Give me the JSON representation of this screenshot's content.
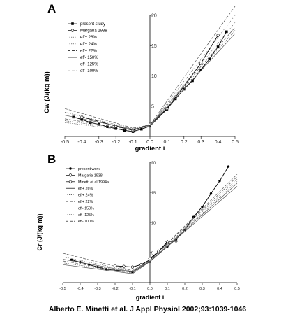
{
  "citation": "Alberto E. Minetti et al. J Appl Physiol 2002;93:1039-1046",
  "chart_data": [
    {
      "type": "line",
      "panel": "A",
      "xlabel": "gradient i",
      "ylabel": "Cw (J/(kg m))",
      "xlim": [
        -0.5,
        0.5
      ],
      "ylim": [
        0,
        20
      ],
      "xticks": [
        -0.5,
        -0.4,
        -0.3,
        -0.2,
        -0.1,
        0.0,
        0.1,
        0.2,
        0.3,
        0.4,
        0.5
      ],
      "xticklabels": [
        "-0.5",
        "-0.4",
        "-0.3",
        "-0.2",
        "-0.1",
        "0.0",
        "0.1",
        "0.2",
        "0.3",
        "0.4",
        "0.5"
      ],
      "yticks": [
        5,
        10,
        15,
        20
      ],
      "yticklabels": [
        "5",
        "10",
        "15",
        "20"
      ],
      "grid": false,
      "legend_position": "top-left",
      "series": [
        {
          "name": "present study",
          "style": "solid",
          "marker": "filled-square",
          "x": [
            -0.45,
            -0.4,
            -0.35,
            -0.3,
            -0.25,
            -0.2,
            -0.15,
            -0.1,
            -0.05,
            0.0,
            0.1,
            0.15,
            0.2,
            0.25,
            0.3,
            0.35,
            0.4,
            0.45
          ],
          "y": [
            3.2,
            2.8,
            2.3,
            2.0,
            1.6,
            1.3,
            1.0,
            0.8,
            1.2,
            1.7,
            4.5,
            6.2,
            7.8,
            9.2,
            11.0,
            12.8,
            14.8,
            17.3
          ]
        },
        {
          "name": "Margaria 1938",
          "style": "solid",
          "marker": "open-circle",
          "x": [
            -0.4,
            -0.3,
            -0.2,
            -0.1,
            0.0,
            0.1,
            0.2,
            0.3,
            0.4
          ],
          "y": [
            3.2,
            2.5,
            1.7,
            1.0,
            2.0,
            4.6,
            8.3,
            12.1,
            16.7
          ]
        },
        {
          "name": "eff+ 26%",
          "style": "dotted",
          "x": [
            -0.5,
            -0.1,
            0.0,
            0.5
          ],
          "y": [
            2.3,
            0.9,
            1.7,
            18.8
          ]
        },
        {
          "name": "eff+ 24%",
          "style": "dotted",
          "x": [
            -0.5,
            -0.1,
            0.0,
            0.5
          ],
          "y": [
            2.6,
            1.0,
            1.8,
            20.0
          ]
        },
        {
          "name": "eff+ 22%",
          "style": "dashed",
          "x": [
            -0.5,
            -0.1,
            0.0,
            0.5
          ],
          "y": [
            2.9,
            1.1,
            1.9,
            21.5
          ]
        },
        {
          "name": "eff- 150%",
          "style": "solid",
          "x": [
            -0.5,
            -0.1,
            0.0,
            0.5
          ],
          "y": [
            3.5,
            1.2,
            1.7,
            17.0
          ]
        },
        {
          "name": "eff- 125%",
          "style": "dotted",
          "x": [
            -0.5,
            -0.1,
            0.0,
            0.5
          ],
          "y": [
            4.0,
            1.3,
            1.8,
            17.5
          ]
        },
        {
          "name": "eff- 100%",
          "style": "dashed",
          "x": [
            -0.5,
            -0.1,
            0.0,
            0.5
          ],
          "y": [
            4.6,
            1.4,
            1.9,
            18.0
          ]
        }
      ]
    },
    {
      "type": "line",
      "panel": "B",
      "xlabel": "gradient i",
      "ylabel": "Cr (J/(kg m))",
      "xlim": [
        -0.5,
        0.5
      ],
      "ylim": [
        0,
        20
      ],
      "xticks": [
        -0.5,
        -0.4,
        -0.3,
        -0.2,
        -0.1,
        0.0,
        0.1,
        0.2,
        0.3,
        0.4,
        0.5
      ],
      "xticklabels": [
        "-0.5",
        "-0.4",
        "-0.3",
        "-0.2",
        "-0.1",
        "0.0",
        "0.1",
        "0.2",
        "0.3",
        "0.4",
        "0.5"
      ],
      "yticks": [
        5,
        10,
        15,
        20
      ],
      "yticklabels": [
        "5",
        "10",
        "15",
        "20"
      ],
      "grid": false,
      "legend_position": "top-left",
      "series": [
        {
          "name": "present work",
          "style": "solid",
          "marker": "filled-circle",
          "x": [
            -0.45,
            -0.4,
            -0.35,
            -0.3,
            -0.25,
            -0.1,
            0.0,
            0.1,
            0.15,
            0.2,
            0.25,
            0.3,
            0.35,
            0.4,
            0.45
          ],
          "y": [
            3.8,
            3.4,
            3.0,
            2.6,
            2.2,
            1.8,
            3.5,
            6.0,
            7.2,
            8.8,
            10.9,
            12.6,
            14.8,
            16.9,
            19.3
          ]
        },
        {
          "name": "Margaria 1938",
          "style": "solid",
          "marker": "open-circle",
          "x": [
            -0.2,
            -0.15,
            -0.1,
            -0.05,
            0.0,
            0.1
          ],
          "y": [
            2.8,
            2.7,
            2.6,
            3.0,
            3.8,
            6.6
          ]
        },
        {
          "name": "Minetti et al.1994a",
          "style": "solid",
          "marker": "open-diamond",
          "x": [
            0.0,
            0.05,
            0.1,
            0.15
          ],
          "y": [
            4.0,
            5.2,
            6.8,
            6.9
          ]
        },
        {
          "name": "eff+ 26%",
          "style": "solid",
          "x": [
            -0.5,
            -0.1,
            0.0,
            0.5
          ],
          "y": [
            3.0,
            1.5,
            3.5,
            16.5
          ]
        },
        {
          "name": "eff+ 24%",
          "style": "dotted",
          "x": [
            -0.5,
            -0.1,
            0.0,
            0.5
          ],
          "y": [
            3.3,
            1.6,
            3.6,
            17.2
          ]
        },
        {
          "name": "eff+ 22%",
          "style": "dashed",
          "x": [
            -0.5,
            -0.1,
            0.0,
            0.5
          ],
          "y": [
            3.6,
            1.7,
            3.7,
            18.0
          ]
        },
        {
          "name": "eff- 150%",
          "style": "solid",
          "x": [
            -0.5,
            -0.1,
            0.0,
            0.5
          ],
          "y": [
            3.9,
            1.8,
            3.5,
            16.0
          ]
        },
        {
          "name": "eff- 125%",
          "style": "dotted",
          "x": [
            -0.5,
            -0.1,
            0.0,
            0.5
          ],
          "y": [
            4.3,
            1.9,
            3.6,
            16.8
          ]
        },
        {
          "name": "eff- 100%",
          "style": "dashed",
          "x": [
            -0.5,
            -0.1,
            0.0,
            0.5
          ],
          "y": [
            4.9,
            2.0,
            3.7,
            17.6
          ]
        }
      ]
    }
  ]
}
